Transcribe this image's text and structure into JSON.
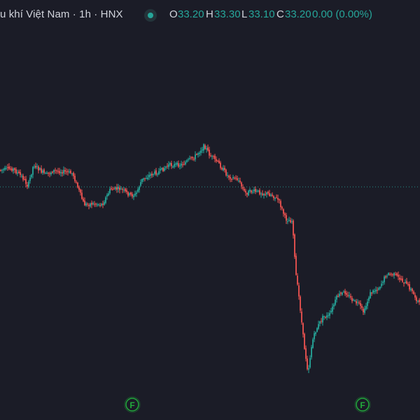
{
  "legend": {
    "title": "u khí Việt Nam · 1h · HNX",
    "open_label": "O",
    "open": "33.20",
    "high_label": "H",
    "high": "33.30",
    "low_label": "L",
    "low": "33.10",
    "close_label": "C",
    "close": "33.20",
    "change": "0.00 (0.00%)"
  },
  "colors": {
    "background": "#1b1c27",
    "up": "#26a69a",
    "down": "#ef5350",
    "price_line": "#26a69a"
  },
  "markers": [
    {
      "label": "F",
      "icon": "circle-f-icon"
    },
    {
      "label": "F",
      "icon": "circle-f-icon"
    }
  ]
}
